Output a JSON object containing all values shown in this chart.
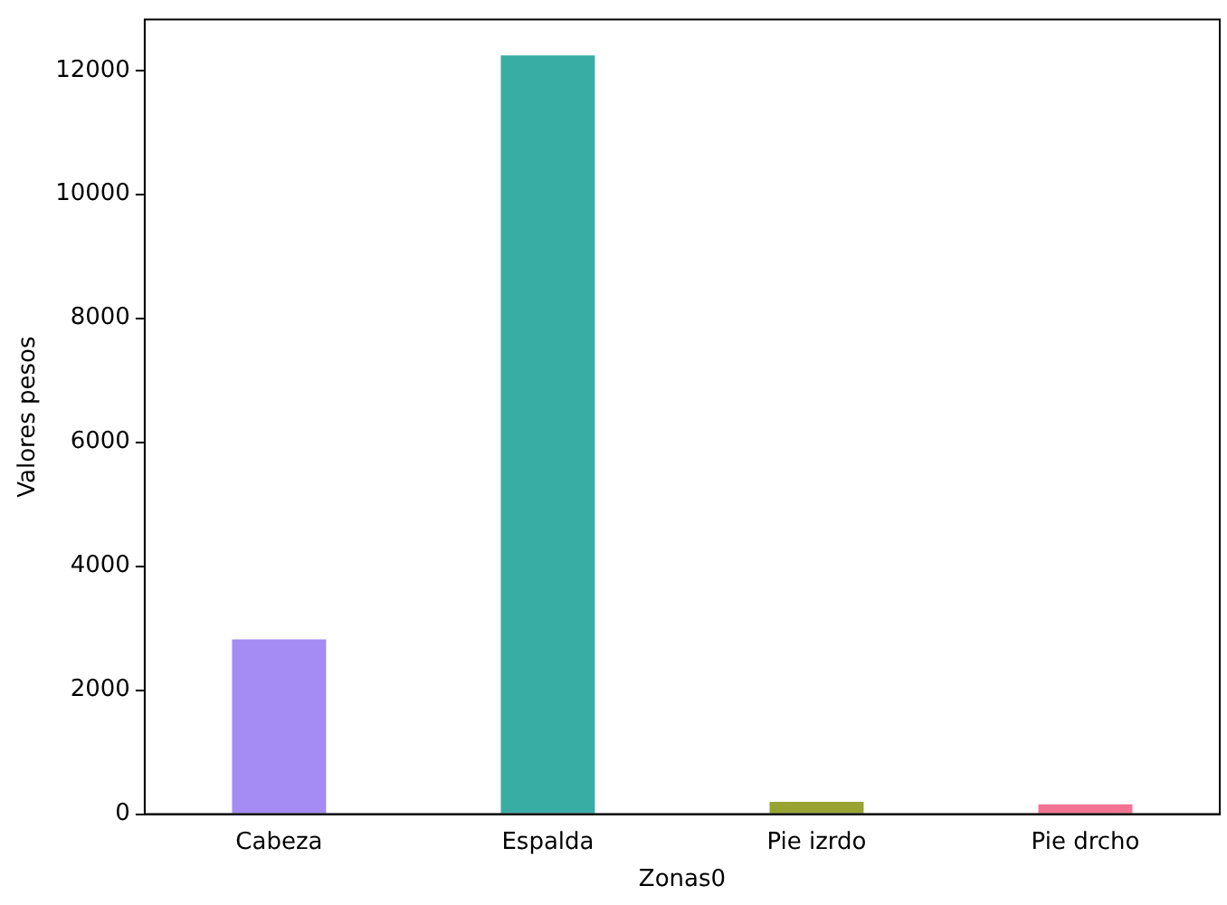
{
  "chart_data": {
    "type": "bar",
    "xlabel": "Zonas0",
    "ylabel": "Valores pesos",
    "categories": [
      "Cabeza",
      "Espalda",
      "Pie izrdo",
      "Pie drcho"
    ],
    "values": [
      2820,
      12240,
      200,
      160
    ],
    "colors": [
      "#a48cf4",
      "#38ada4",
      "#97a431",
      "#f37394"
    ],
    "ylim": [
      0,
      12820
    ],
    "yticks": [
      0,
      2000,
      4000,
      6000,
      8000,
      10000,
      12000
    ],
    "grid": false,
    "legend": false
  }
}
